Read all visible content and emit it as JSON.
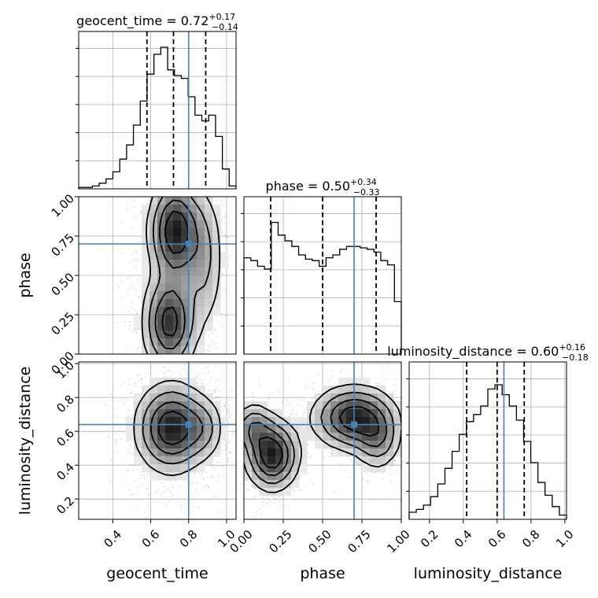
{
  "chart_data": {
    "type": "corner",
    "parameters": [
      {
        "key": "geocent_time",
        "label": "geocent_time",
        "range": [
          0.22,
          1.05
        ],
        "ticks": [
          "0.4",
          "0.6",
          "0.8",
          "1.0"
        ],
        "tick_values": [
          0.4,
          0.6,
          0.8,
          1.0
        ],
        "title_name": "geocent_time",
        "median": "0.72",
        "plus": "+0.17",
        "minus": "−0.14",
        "quantiles": [
          0.58,
          0.72,
          0.89
        ],
        "truth": 0.8,
        "hist": [
          0.01,
          0.01,
          0.02,
          0.04,
          0.07,
          0.12,
          0.21,
          0.31,
          0.45,
          0.62,
          0.81,
          0.95,
          1.0,
          0.84,
          0.8,
          0.78,
          0.65,
          0.52,
          0.48,
          0.52,
          0.37,
          0.14,
          0.02
        ]
      },
      {
        "key": "phase",
        "label": "phase",
        "range": [
          0.0,
          1.0
        ],
        "ticks": [
          "0.00",
          "0.25",
          "0.50",
          "0.75",
          "1.00"
        ],
        "tick_values": [
          0.0,
          0.25,
          0.5,
          0.75,
          1.0
        ],
        "title_name": "phase",
        "median": "0.50",
        "plus": "+0.34",
        "minus": "−0.33",
        "quantiles": [
          0.17,
          0.5,
          0.84
        ],
        "truth": 0.7,
        "hist": [
          0.68,
          0.66,
          0.62,
          0.6,
          0.93,
          0.84,
          0.8,
          0.76,
          0.7,
          0.67,
          0.66,
          0.62,
          0.68,
          0.7,
          0.74,
          0.76,
          0.76,
          0.75,
          0.74,
          0.72,
          0.66,
          0.63,
          0.37
        ]
      },
      {
        "key": "luminosity_distance",
        "label": "luminosity_distance",
        "range": [
          0.08,
          1.01
        ],
        "ticks": [
          "0.2",
          "0.4",
          "0.6",
          "0.8",
          "1.0"
        ],
        "tick_values": [
          0.2,
          0.4,
          0.6,
          0.8,
          1.0
        ],
        "title_name": "luminosity_distance",
        "median": "0.60",
        "plus": "+0.16",
        "minus": "−0.18",
        "quantiles": [
          0.42,
          0.6,
          0.76
        ],
        "truth": 0.64,
        "hist": [
          0.05,
          0.07,
          0.1,
          0.16,
          0.25,
          0.36,
          0.48,
          0.6,
          0.69,
          0.74,
          0.8,
          0.92,
          0.95,
          0.88,
          0.8,
          0.7,
          0.55,
          0.4,
          0.26,
          0.17,
          0.09,
          0.03
        ]
      }
    ],
    "pairs": [
      {
        "x": "geocent_time",
        "y": "phase",
        "truth": [
          0.8,
          0.7
        ],
        "blobs": [
          {
            "x": 0.73,
            "y": 0.78,
            "sx": 0.075,
            "sy": 0.18,
            "w": 1.0
          },
          {
            "x": 0.7,
            "y": 0.2,
            "sx": 0.075,
            "sy": 0.17,
            "w": 0.9
          },
          {
            "x": 0.88,
            "y": 0.6,
            "sx": 0.06,
            "sy": 0.25,
            "w": 0.35
          }
        ]
      },
      {
        "x": "geocent_time",
        "y": "luminosity_distance",
        "truth": [
          0.8,
          0.64
        ],
        "blobs": [
          {
            "x": 0.71,
            "y": 0.62,
            "sx": 0.1,
            "sy": 0.14,
            "w": 1.0
          },
          {
            "x": 0.88,
            "y": 0.62,
            "sx": 0.06,
            "sy": 0.1,
            "w": 0.3
          }
        ]
      },
      {
        "x": "phase",
        "y": "luminosity_distance",
        "truth": [
          0.7,
          0.64
        ],
        "blobs": [
          {
            "x": 0.18,
            "y": 0.46,
            "sx": 0.09,
            "sy": 0.11,
            "w": 1.0
          },
          {
            "x": 0.06,
            "y": 0.62,
            "sx": 0.07,
            "sy": 0.08,
            "w": 0.5
          },
          {
            "x": 0.7,
            "y": 0.68,
            "sx": 0.14,
            "sy": 0.1,
            "w": 0.95
          },
          {
            "x": 0.85,
            "y": 0.55,
            "sx": 0.08,
            "sy": 0.1,
            "w": 0.45
          }
        ]
      }
    ]
  }
}
